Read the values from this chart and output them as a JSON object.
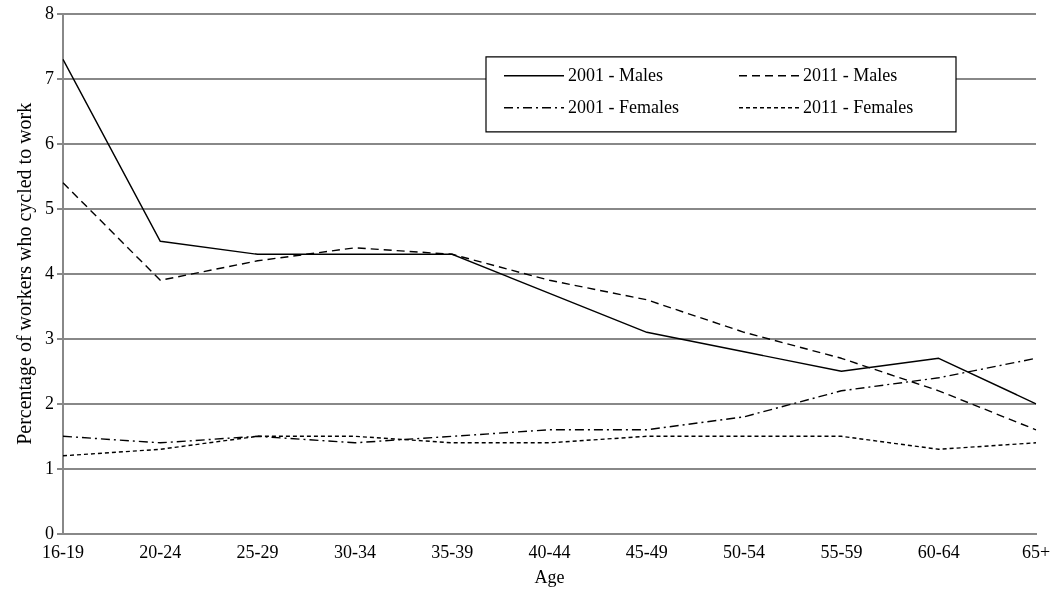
{
  "chart_data": {
    "type": "line",
    "xlabel": "Age",
    "ylabel": "Percentage of workers who cycled to work",
    "categories": [
      "16-19",
      "20-24",
      "25-29",
      "30-34",
      "35-39",
      "40-44",
      "45-49",
      "50-54",
      "55-59",
      "60-64",
      "65+"
    ],
    "series": [
      {
        "name": "2001 - Males",
        "color": "#000000",
        "line_style": "solid",
        "values": [
          7.3,
          4.5,
          4.3,
          4.3,
          4.3,
          3.7,
          3.1,
          2.8,
          2.5,
          2.7,
          2.0
        ]
      },
      {
        "name": "2011 - Males",
        "color": "#000000",
        "line_style": "dashed",
        "values": [
          5.4,
          3.9,
          4.2,
          4.4,
          4.3,
          3.9,
          3.6,
          3.1,
          2.7,
          2.2,
          1.6
        ]
      },
      {
        "name": "2001 - Females",
        "color": "#000000",
        "line_style": "dashdot",
        "values": [
          1.5,
          1.4,
          1.5,
          1.4,
          1.5,
          1.6,
          1.6,
          1.8,
          2.2,
          2.4,
          2.7
        ]
      },
      {
        "name": "2011 - Females",
        "color": "#000000",
        "line_style": "dotted",
        "values": [
          1.2,
          1.3,
          1.5,
          1.5,
          1.4,
          1.4,
          1.5,
          1.5,
          1.5,
          1.3,
          1.4
        ]
      }
    ],
    "ylim": [
      0,
      8
    ],
    "yticks": [
      0,
      1,
      2,
      3,
      4,
      5,
      6,
      7,
      8
    ],
    "grid": "y",
    "legend": "top right",
    "marker": "none"
  }
}
